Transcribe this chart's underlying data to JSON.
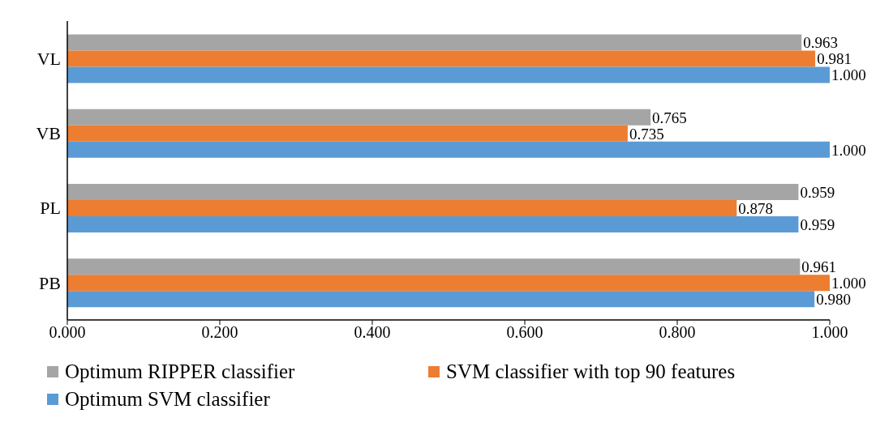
{
  "chart_data": {
    "type": "bar",
    "orientation": "horizontal",
    "categories": [
      "VL",
      "VB",
      "PL",
      "PB"
    ],
    "series": [
      {
        "name": "Optimum RIPPER classifier",
        "color": "#a5a5a5",
        "values": [
          0.963,
          0.765,
          0.959,
          0.961
        ],
        "value_labels": [
          "0.963",
          "0.765",
          "0.959",
          "0.961"
        ]
      },
      {
        "name": "SVM classifier with top 90 features",
        "color": "#ed7d31",
        "values": [
          0.981,
          0.735,
          0.878,
          1.0
        ],
        "value_labels": [
          "0.981",
          "0.735",
          "0.878",
          "1.000"
        ]
      },
      {
        "name": "Optimum SVM classifier",
        "color": "#5b9bd5",
        "values": [
          1.0,
          1.0,
          0.959,
          0.98
        ],
        "value_labels": [
          "1.000",
          "1.000",
          "0.959",
          "0.980"
        ]
      }
    ],
    "xlim": [
      0,
      1
    ],
    "xticks": [
      {
        "value": 0,
        "label": "0.000"
      },
      {
        "value": 0.2,
        "label": "0.200"
      },
      {
        "value": 0.4,
        "label": "0.400"
      },
      {
        "value": 0.6,
        "label": "0.600"
      },
      {
        "value": 0.8,
        "label": "0.800"
      },
      {
        "value": 1,
        "label": "1.000"
      }
    ],
    "legend": "bottom",
    "grid": false
  }
}
